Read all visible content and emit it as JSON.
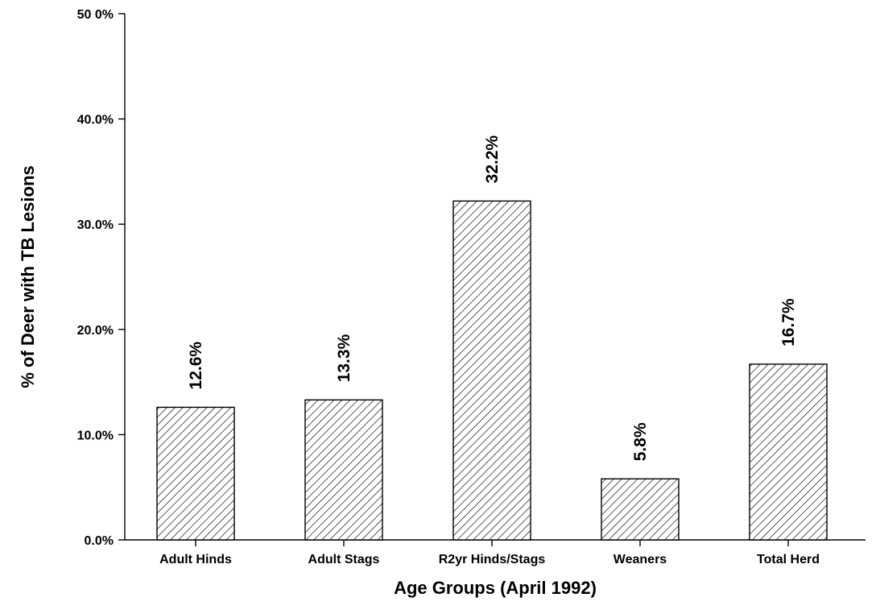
{
  "chart_data": {
    "type": "bar",
    "xlabel": "Age Groups (April 1992)",
    "ylabel": "% of Deer with TB Lesions",
    "ylim": [
      0,
      50
    ],
    "yticks": [
      0,
      10,
      20,
      30,
      40,
      50
    ],
    "ytick_labels": [
      "0.0%",
      "10.0%",
      "20.0%",
      "30.0%",
      "40.0%",
      "50 0%"
    ],
    "categories": [
      "Adult Hinds",
      "Adult Stags",
      "R2yr Hinds/Stags",
      "Weaners",
      "Total Herd"
    ],
    "values": [
      12.6,
      13.3,
      32.2,
      5.8,
      16.7
    ],
    "data_labels": [
      "12.6%",
      "13.3%",
      "32.2%",
      "5.8%",
      "16.7%"
    ],
    "bar_fill": "diagonal-hatch",
    "grid": false,
    "legend": "none"
  },
  "colors": {
    "bar_stroke": "#000000",
    "hatch": "#000000",
    "background": "#ffffff"
  }
}
